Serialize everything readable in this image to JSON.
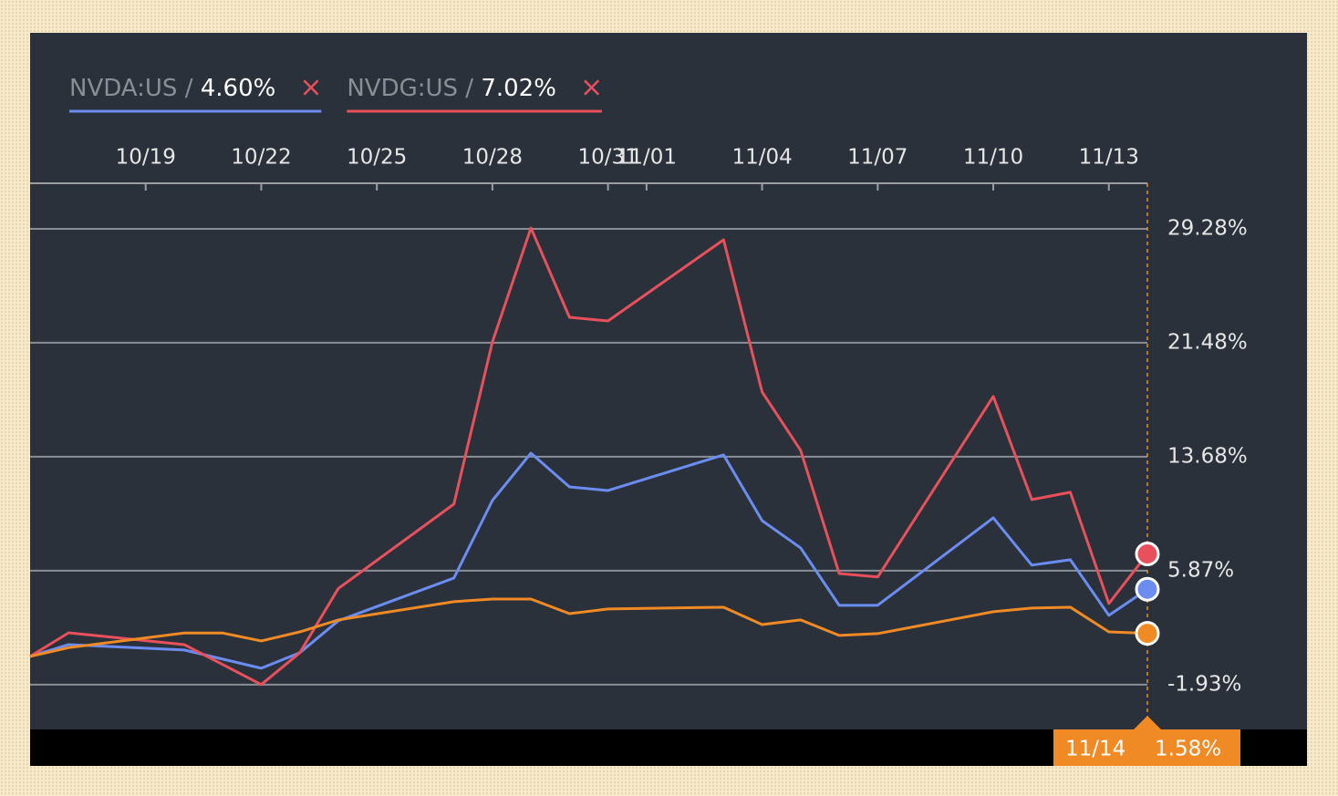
{
  "chart_data": {
    "type": "line",
    "legend": {
      "separator": "/",
      "close": "×"
    },
    "xlim": [
      "10/16",
      "11/14"
    ],
    "xticks": [
      "10/19",
      "10/22",
      "10/25",
      "10/28",
      "10/31",
      "11/01",
      "11/04",
      "11/07",
      "11/10",
      "11/13"
    ],
    "ylim": [
      -5,
      32.4
    ],
    "yticks": [
      {
        "value": 29.28,
        "label": "29.28%"
      },
      {
        "value": 21.48,
        "label": "21.48%"
      },
      {
        "value": 13.68,
        "label": "13.68%"
      },
      {
        "value": 5.87,
        "label": "5.87%"
      },
      {
        "value": -1.93,
        "label": "-1.93%"
      }
    ],
    "grid": true,
    "series": [
      {
        "name": "NVDA:US",
        "last_label": "4.60%",
        "color": "#6b8cf0",
        "x": [
          "10/16",
          "10/17",
          "10/20",
          "10/22",
          "10/23",
          "10/24",
          "10/27",
          "10/28",
          "10/29",
          "10/30",
          "10/31",
          "11/03",
          "11/04",
          "11/05",
          "11/06",
          "11/07",
          "11/10",
          "11/11",
          "11/12",
          "11/13",
          "11/14"
        ],
        "values": [
          0,
          0.81,
          0.44,
          -0.81,
          0.25,
          2.44,
          5.37,
          10.68,
          13.92,
          11.61,
          11.36,
          13.8,
          9.3,
          7.43,
          3.5,
          3.5,
          9.49,
          6.25,
          6.62,
          2.81,
          4.6
        ]
      },
      {
        "name": "NVDG:US",
        "last_label": "7.02%",
        "color": "#e8505b",
        "x": [
          "10/16",
          "10/17",
          "10/20",
          "10/22",
          "10/23",
          "10/24",
          "10/27",
          "10/28",
          "10/29",
          "10/30",
          "10/31",
          "11/03",
          "11/04",
          "11/05",
          "11/06",
          "11/07",
          "11/10",
          "11/11",
          "11/12",
          "11/13",
          "11/14"
        ],
        "values": [
          0,
          1.62,
          0.81,
          -1.93,
          0.25,
          4.65,
          10.43,
          21.54,
          29.34,
          23.22,
          22.97,
          28.53,
          18.11,
          14.11,
          5.68,
          5.44,
          17.8,
          10.74,
          11.24,
          3.62,
          7.02
        ]
      },
      {
        "color": "#f08a24",
        "x": [
          "10/16",
          "10/17",
          "10/20",
          "10/21",
          "10/22",
          "10/23",
          "10/24",
          "10/27",
          "10/28",
          "10/29",
          "10/30",
          "10/31",
          "11/03",
          "11/04",
          "11/05",
          "11/06",
          "11/07",
          "11/10",
          "11/11",
          "11/12",
          "11/13",
          "11/14"
        ],
        "values": [
          0,
          0.6,
          1.6,
          1.6,
          1.06,
          1.68,
          2.5,
          3.75,
          3.93,
          3.93,
          2.93,
          3.25,
          3.37,
          2.18,
          2.5,
          1.44,
          1.56,
          3.06,
          3.31,
          3.37,
          1.68,
          1.58
        ]
      }
    ],
    "cursor": {
      "x": "11/14",
      "label": "1.58%"
    }
  }
}
